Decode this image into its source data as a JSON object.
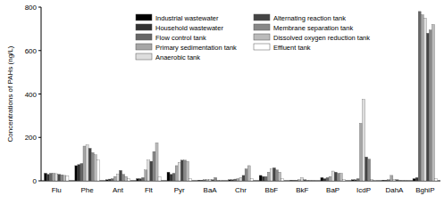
{
  "chart_data": {
    "type": "bar",
    "y_label": "Concentrations of PAHs (ng/L)",
    "categories": [
      "Flu",
      "Phe",
      "Ant",
      "Flt",
      "Pyr",
      "BaA",
      "Chr",
      "BbF",
      "BkF",
      "BaP",
      "IcdP",
      "DahA",
      "BghiP"
    ],
    "series": [
      {
        "name": "Industrial wastewater",
        "color": "#000000",
        "values": [
          35,
          70,
          5,
          10,
          40,
          3,
          5,
          25,
          2,
          15,
          5,
          3,
          10
        ]
      },
      {
        "name": "Household wastewater",
        "color": "#333333",
        "values": [
          30,
          75,
          8,
          10,
          30,
          3,
          5,
          20,
          2,
          10,
          5,
          3,
          15
        ]
      },
      {
        "name": "Flow control tank",
        "color": "#666666",
        "values": [
          35,
          80,
          10,
          15,
          35,
          5,
          8,
          20,
          3,
          15,
          10,
          5,
          780
        ]
      },
      {
        "name": "Primary sedimentation tank",
        "color": "#a6a6a6",
        "values": [
          35,
          160,
          20,
          50,
          70,
          5,
          10,
          40,
          5,
          20,
          265,
          25,
          765
        ]
      },
      {
        "name": "Anaerobic tank",
        "color": "#dddddd",
        "values": [
          33,
          165,
          30,
          95,
          85,
          5,
          15,
          55,
          15,
          45,
          375,
          5,
          750
        ]
      },
      {
        "name": "Alternating reaction tank",
        "color": "#444444",
        "values": [
          30,
          150,
          48,
          90,
          95,
          5,
          25,
          60,
          5,
          40,
          110,
          5,
          680
        ]
      },
      {
        "name": "Membrane separation tank",
        "color": "#888888",
        "values": [
          28,
          130,
          30,
          135,
          95,
          15,
          55,
          50,
          3,
          35,
          100,
          3,
          695
        ]
      },
      {
        "name": "Dissolved oxygen reduction tank",
        "color": "#bbbbbb",
        "values": [
          25,
          120,
          20,
          175,
          90,
          3,
          70,
          40,
          2,
          35,
          5,
          2,
          720
        ]
      },
      {
        "name": "Effluent tank",
        "color": "#ffffff",
        "values": [
          22,
          95,
          10,
          20,
          10,
          2,
          10,
          10,
          1,
          5,
          2,
          1,
          10
        ]
      }
    ],
    "ylim": [
      0,
      800
    ],
    "yticks": [
      0,
      200,
      400,
      600,
      800
    ],
    "grid": false,
    "legend": "top"
  }
}
